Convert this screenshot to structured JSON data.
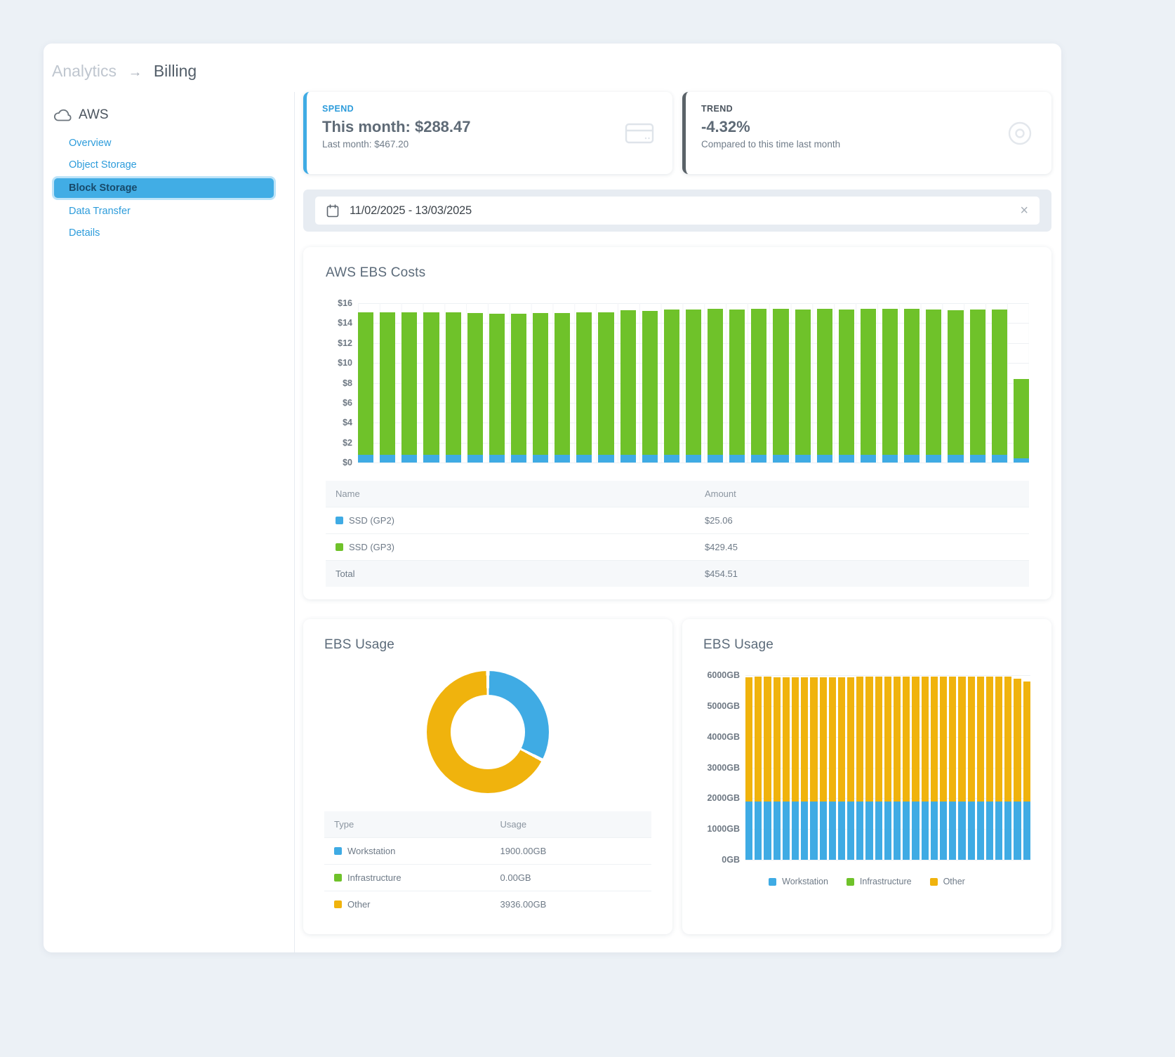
{
  "breadcrumb": {
    "section": "Analytics",
    "separator": "→",
    "page": "Billing"
  },
  "sidebar": {
    "group_label": "AWS",
    "group_icon": "cloud-icon",
    "items": [
      {
        "label": "Overview",
        "active": false
      },
      {
        "label": "Object Storage",
        "active": false
      },
      {
        "label": "Block Storage",
        "active": true
      },
      {
        "label": "Data Transfer",
        "active": false
      },
      {
        "label": "Details",
        "active": false
      }
    ]
  },
  "stat_cards": {
    "spend": {
      "label": "SPEND",
      "title": "This month: $288.47",
      "subtitle": "Last month: $467.20",
      "icon": "credit-card-icon",
      "accent_color": "#3fabe4"
    },
    "trend": {
      "label": "TREND",
      "title": "-4.32%",
      "subtitle": "Compared to this time last month",
      "icon": "target-icon",
      "accent_color": "#5a6268"
    }
  },
  "datepicker": {
    "value": "11/02/2025 - 13/03/2025",
    "calendar_icon": "calendar-icon",
    "clear_label": "×"
  },
  "colors": {
    "blue": "#3fabe4",
    "green": "#6fc22a",
    "yellow": "#f0b30d",
    "link": "#2d9cdb",
    "selected_item_bg": "#41ade5"
  },
  "chart_data": [
    {
      "id": "aws-ebs-costs",
      "type": "bar",
      "stacked": true,
      "title": "AWS EBS Costs",
      "x_axis_labels_visible": false,
      "x_note": "31 daily bars covering 11/02/2025 - 13/03/2025",
      "ylim": [
        0,
        16
      ],
      "yticks": [
        "$16",
        "$14",
        "$12",
        "$10",
        "$8",
        "$6",
        "$4",
        "$2",
        "$0"
      ],
      "grid": true,
      "series": [
        {
          "name": "SSD (GP2)",
          "color": "#3fabe4",
          "values": [
            0.81,
            0.81,
            0.81,
            0.81,
            0.81,
            0.81,
            0.81,
            0.81,
            0.81,
            0.81,
            0.81,
            0.81,
            0.81,
            0.81,
            0.81,
            0.81,
            0.81,
            0.81,
            0.81,
            0.81,
            0.81,
            0.81,
            0.81,
            0.81,
            0.81,
            0.81,
            0.81,
            0.81,
            0.81,
            0.81,
            0.45
          ]
        },
        {
          "name": "SSD (GP3)",
          "color": "#6fc22a",
          "values": [
            14.3,
            14.3,
            14.3,
            14.3,
            14.3,
            14.2,
            14.1,
            14.15,
            14.2,
            14.2,
            14.3,
            14.3,
            14.5,
            14.45,
            14.55,
            14.55,
            14.6,
            14.55,
            14.6,
            14.6,
            14.55,
            14.6,
            14.55,
            14.6,
            14.6,
            14.6,
            14.55,
            14.5,
            14.55,
            14.55,
            7.95
          ]
        }
      ],
      "table": {
        "headers": [
          "Name",
          "Amount"
        ],
        "rows": [
          {
            "label": "SSD (GP2)",
            "color": "#3fabe4",
            "value": "$25.06"
          },
          {
            "label": "SSD (GP3)",
            "color": "#6fc22a",
            "value": "$429.45"
          }
        ],
        "total": {
          "label": "Total",
          "value": "$454.51"
        }
      }
    },
    {
      "id": "ebs-usage-donut",
      "type": "pie",
      "title": "EBS Usage",
      "labels": [
        "Workstation",
        "Infrastructure",
        "Other"
      ],
      "values": [
        1900,
        0,
        3936
      ],
      "colors": [
        "#3fabe4",
        "#6fc22a",
        "#f0b30d"
      ],
      "table": {
        "headers": [
          "Type",
          "Usage"
        ],
        "rows": [
          {
            "label": "Workstation",
            "color": "#3fabe4",
            "value": "1900.00GB"
          },
          {
            "label": "Infrastructure",
            "color": "#6fc22a",
            "value": "0.00GB"
          },
          {
            "label": "Other",
            "color": "#f0b30d",
            "value": "3936.00GB"
          }
        ]
      }
    },
    {
      "id": "ebs-usage-daily",
      "type": "bar",
      "stacked": true,
      "title": "EBS Usage",
      "x_axis_labels_visible": false,
      "ylim": [
        0,
        6000
      ],
      "yticks": [
        "6000GB",
        "5000GB",
        "4000GB",
        "3000GB",
        "2000GB",
        "1000GB",
        "0GB"
      ],
      "grid": true,
      "series": [
        {
          "name": "Workstation",
          "color": "#3fabe4",
          "values": [
            1900,
            1900,
            1900,
            1900,
            1900,
            1900,
            1900,
            1900,
            1900,
            1900,
            1900,
            1900,
            1900,
            1900,
            1900,
            1900,
            1900,
            1900,
            1900,
            1900,
            1900,
            1900,
            1900,
            1900,
            1900,
            1900,
            1900,
            1900,
            1900,
            1900,
            1900
          ]
        },
        {
          "name": "Infrastructure",
          "color": "#6fc22a",
          "values": [
            0,
            0,
            0,
            0,
            0,
            0,
            0,
            0,
            0,
            0,
            0,
            0,
            0,
            0,
            0,
            0,
            0,
            0,
            0,
            0,
            0,
            0,
            0,
            0,
            0,
            0,
            0,
            0,
            0,
            0,
            0
          ]
        },
        {
          "name": "Other",
          "color": "#f0b30d",
          "values": [
            4040,
            4050,
            4045,
            4040,
            4040,
            4030,
            4025,
            4030,
            4035,
            4035,
            4040,
            4040,
            4050,
            4045,
            4050,
            4055,
            4055,
            4050,
            4055,
            4055,
            4050,
            4055,
            4050,
            4055,
            4055,
            4050,
            4050,
            4045,
            4050,
            3980,
            3890
          ]
        }
      ],
      "legend": [
        {
          "label": "Workstation",
          "color": "#3fabe4"
        },
        {
          "label": "Infrastructure",
          "color": "#6fc22a"
        },
        {
          "label": "Other",
          "color": "#f0b30d"
        }
      ]
    }
  ]
}
